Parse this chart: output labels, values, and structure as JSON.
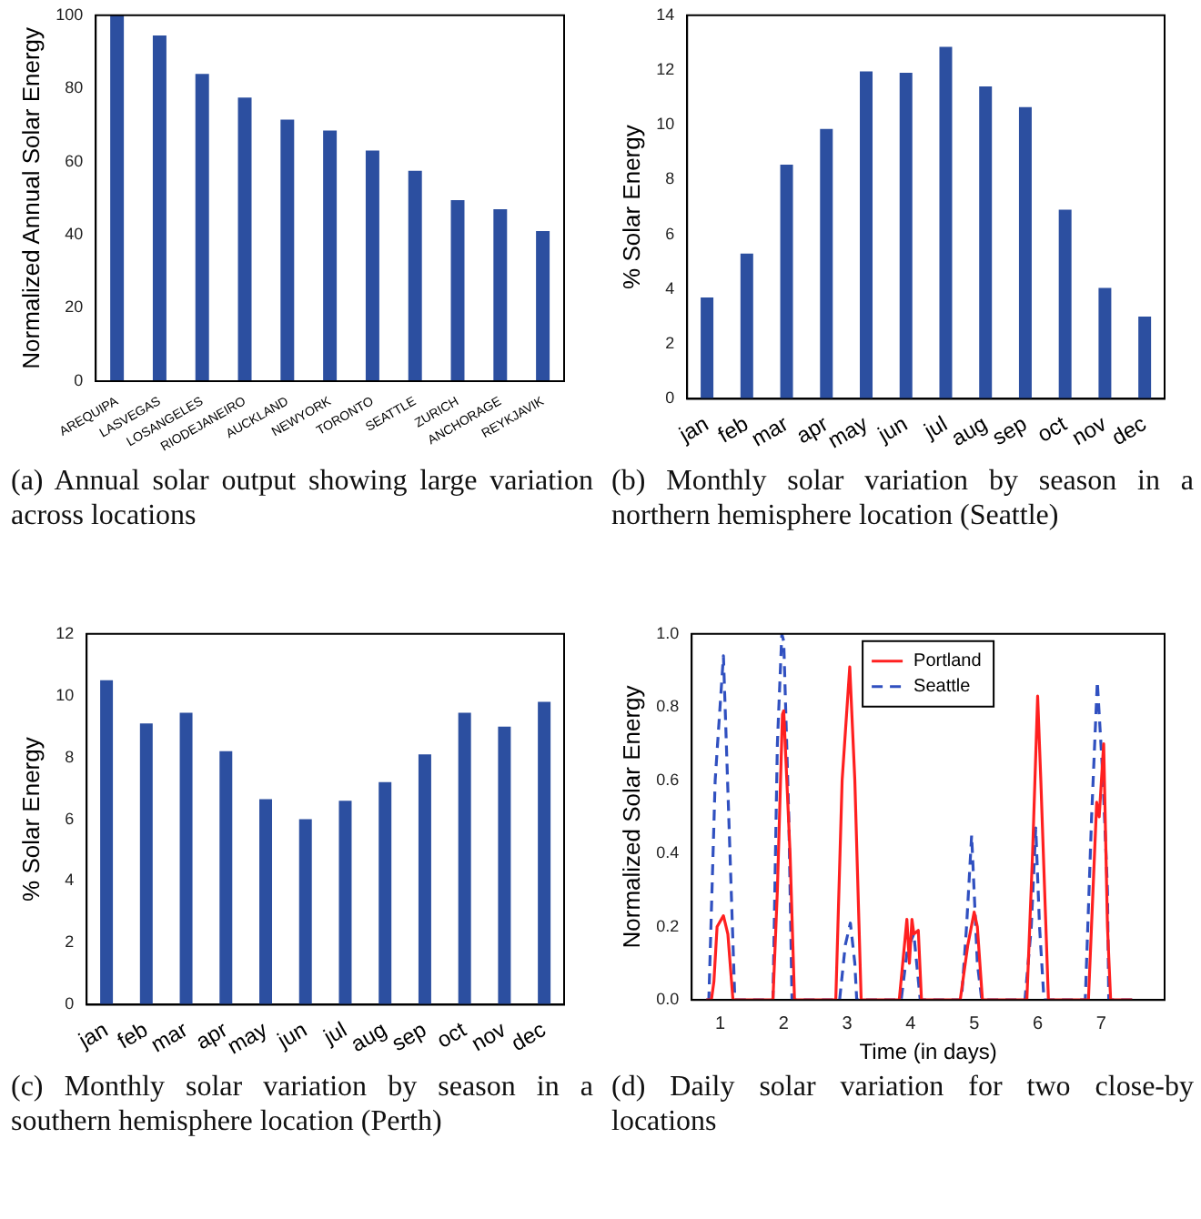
{
  "chart_data": [
    {
      "type": "bar",
      "ylabel": "Normalized Annual Solar Energy",
      "categories": [
        "AREQUIPA",
        "LASVEGAS",
        "LOSANGELES",
        "RIODEJANEIRO",
        "AUCKLAND",
        "NEWYORK",
        "TORONTO",
        "SEATTLE",
        "ZURICH",
        "ANCHORAGE",
        "REYKJAVIK"
      ],
      "values": [
        100,
        94.5,
        84,
        77.5,
        71.5,
        68.5,
        63,
        57.5,
        49.5,
        47,
        41
      ],
      "color": "#2c4fa0",
      "ylim": [
        0,
        100
      ],
      "yticks": [
        0,
        20,
        40,
        60,
        80,
        100
      ],
      "annotations": [
        "(a) Annual solar output showing large variation across locations"
      ]
    },
    {
      "type": "bar",
      "ylabel": "% Solar Energy",
      "categories": [
        "jan",
        "feb",
        "mar",
        "apr",
        "may",
        "jun",
        "jul",
        "aug",
        "sep",
        "oct",
        "nov",
        "dec"
      ],
      "values": [
        3.7,
        5.3,
        8.55,
        9.85,
        11.95,
        11.9,
        12.85,
        11.4,
        10.65,
        6.9,
        4.05,
        3.0
      ],
      "color": "#2c4fa0",
      "ylim": [
        0,
        14
      ],
      "yticks": [
        0,
        2,
        4,
        6,
        8,
        10,
        12,
        14
      ],
      "annotations": [
        "(b) Monthly solar variation by season in a northern hemisphere location (Seattle)"
      ]
    },
    {
      "type": "bar",
      "ylabel": "% Solar Energy",
      "categories": [
        "jan",
        "feb",
        "mar",
        "apr",
        "may",
        "jun",
        "jul",
        "aug",
        "sep",
        "oct",
        "nov",
        "dec"
      ],
      "values": [
        10.5,
        9.1,
        9.45,
        8.2,
        6.65,
        6.0,
        6.6,
        7.2,
        8.1,
        9.45,
        9.0,
        9.8
      ],
      "color": "#2c4fa0",
      "ylim": [
        0,
        12
      ],
      "yticks": [
        0,
        2,
        4,
        6,
        8,
        10,
        12
      ],
      "annotations": [
        "(c) Monthly solar variation by season in a southern hemisphere location (Perth)"
      ]
    },
    {
      "type": "line",
      "xlabel": "Time (in days)",
      "ylabel": "Normalized Solar Energy",
      "xlim": [
        0.55,
        8.0
      ],
      "xticks": [
        1,
        2,
        3,
        4,
        5,
        6,
        7
      ],
      "ylim": [
        0,
        1.0
      ],
      "yticks": [
        {
          "value": 0,
          "label": "0.0"
        },
        {
          "value": 0.2,
          "label": "0.2"
        },
        {
          "value": 0.4,
          "label": "0.4"
        },
        {
          "value": 0.6,
          "label": "0.6"
        },
        {
          "value": 0.8,
          "label": "0.8"
        },
        {
          "value": 1.0,
          "label": "1.0"
        }
      ],
      "legend": "top",
      "annotations": [
        "(d) Daily solar variation for two close-by locations"
      ],
      "series": [
        {
          "name": "Portland",
          "color": "#ff2020",
          "line_style": "solid",
          "x": [
            0.78,
            0.86,
            0.9,
            0.95,
            1.05,
            1.12,
            1.2,
            1.83,
            1.9,
            1.98,
            2.0,
            2.1,
            2.17,
            2.82,
            2.92,
            3.04,
            3.12,
            3.22,
            3.82,
            3.94,
            3.98,
            4.02,
            4.05,
            4.12,
            4.17,
            4.78,
            4.9,
            5.0,
            5.05,
            5.13,
            5.83,
            5.92,
            6.0,
            6.05,
            6.17,
            6.8,
            6.93,
            6.97,
            7.04,
            7.1,
            7.15,
            7.49
          ],
          "values": [
            0,
            0,
            0.05,
            0.2,
            0.23,
            0.18,
            0,
            0,
            0.3,
            0.78,
            0.79,
            0.4,
            0,
            0,
            0.6,
            0.91,
            0.6,
            0,
            0,
            0.22,
            0.1,
            0.22,
            0.18,
            0.19,
            0,
            0,
            0.15,
            0.24,
            0.2,
            0,
            0,
            0.4,
            0.83,
            0.6,
            0,
            0,
            0.54,
            0.5,
            0.7,
            0.2,
            0,
            0
          ]
        },
        {
          "name": "Seattle",
          "color": "#3050c0",
          "line_style": "dashed",
          "x": [
            0.78,
            0.82,
            0.92,
            1.05,
            1.23,
            1.83,
            1.9,
            1.97,
            2.0,
            2.08,
            2.13,
            2.88,
            2.97,
            3.05,
            3.12,
            3.15,
            3.85,
            3.95,
            4.05,
            4.15,
            4.8,
            4.88,
            4.96,
            5.05,
            5.12,
            5.8,
            5.9,
            5.97,
            6.03,
            6.1,
            6.75,
            6.85,
            6.94,
            7.03,
            7.1,
            7.12,
            7.49
          ],
          "values": [
            0,
            0,
            0.6,
            0.94,
            0,
            0,
            0.7,
            1.0,
            0.98,
            0.5,
            0,
            0,
            0.15,
            0.21,
            0.1,
            0,
            0,
            0.14,
            0.18,
            0,
            0,
            0.2,
            0.45,
            0.1,
            0,
            0,
            0.2,
            0.47,
            0.2,
            0,
            0,
            0.5,
            0.87,
            0.6,
            0.3,
            0,
            0
          ]
        }
      ]
    }
  ]
}
